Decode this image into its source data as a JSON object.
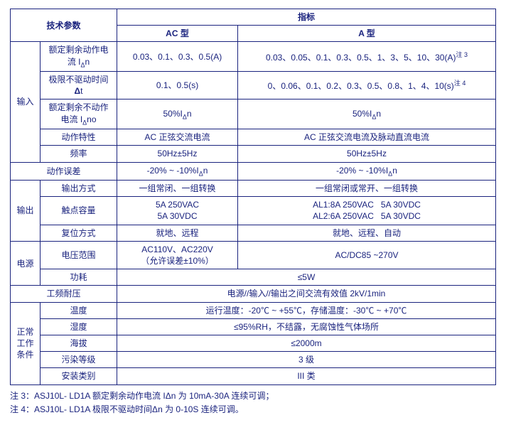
{
  "header": {
    "tech_param": "技术参数",
    "indicator": "指标",
    "ac_type": "AC 型",
    "a_type": "A 型"
  },
  "input": {
    "group": "输入",
    "rated_current_label": "额定剩余动作电\n流 IΔn",
    "rated_current_ac": "0.03、0.1、0.3、0.5(A)",
    "rated_current_a": "0.03、0.05、0.1、0.3、0.5、1、3、5、10、30(A)注 3",
    "limit_time_label": "极限不驱动时间\nΔt",
    "limit_time_ac": "0.1、0.5(s)",
    "limit_time_a": "0、0.06、0.1、0.2、0.3、0.5、0.8、1、4、10(s)注 4",
    "rated_nonop_label": "额定剩余不动作\n电流 IΔno",
    "rated_nonop_ac": "50%IΔn",
    "rated_nonop_a": "50%IΔn",
    "action_char_label": "动作特性",
    "action_char_ac": "AC 正弦交流电流",
    "action_char_a": "AC 正弦交流电流及脉动直流电流",
    "freq_label": "频率",
    "freq_ac": "50Hz±5Hz",
    "freq_a": "50Hz±5Hz"
  },
  "action_err": {
    "label": "动作误差",
    "ac": "-20% ~ -10%IΔn",
    "a": "-20% ~ -10%IΔn"
  },
  "output": {
    "group": "输出",
    "out_mode_label": "输出方式",
    "out_mode_ac": "一组常闭、一组转换",
    "out_mode_a": "一组常闭或常开、一组转换",
    "contact_label": "触点容量",
    "contact_ac": "5A 250VAC\n5A 30VDC",
    "contact_a": "AL1:8A 250VAC   5A 30VDC\nAL2:6A 250VAC   5A 30VDC",
    "reset_label": "复位方式",
    "reset_ac": "就地、远程",
    "reset_a": "就地、远程、自动"
  },
  "power": {
    "group": "电源",
    "voltage_label": "电压范围",
    "voltage_ac": "AC110V、AC220V\n（允许误差±10%）",
    "voltage_a": "AC/DC85 ~270V",
    "cons_label": "功耗",
    "cons_val": "≤5W"
  },
  "withstand": {
    "label": "工频耐压",
    "val": "电源//输入//输出之间交流有效值 2kV/1min"
  },
  "env": {
    "group": "正常\n工作\n条件",
    "temp_label": "温度",
    "temp_val": "运行温度：-20℃ ~ +55℃，存储温度：-30℃ ~ +70℃",
    "hum_label": "湿度",
    "hum_val": "≤95%RH，不结露，无腐蚀性气体场所",
    "alt_label": "海拔",
    "alt_val": "≤2000m",
    "poll_label": "污染等级",
    "poll_val": "3 级",
    "inst_label": "安装类别",
    "inst_val": "III 类"
  },
  "notes": {
    "n3": "注 3：ASJ10L- LD1A 额定剩余动作电流 IΔn 为 10mA-30A 连续可调；",
    "n4": "注 4：ASJ10L- LD1A 极限不驱动时间Δn 为 0-10S 连续可调。"
  }
}
